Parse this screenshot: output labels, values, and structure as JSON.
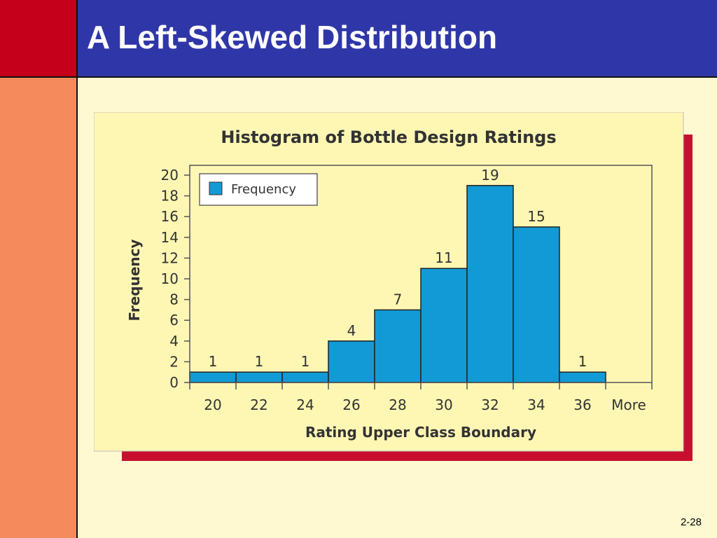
{
  "slide": {
    "title": "A Left-Skewed Distribution",
    "page_number": "2-28"
  },
  "colors": {
    "left_bar_top": "#c4001a",
    "left_bar_bottom": "#f58a5c",
    "title_bar": "#2f37a8",
    "slide_background": "#fff9d2",
    "figure_panel": "#fef7b4",
    "figure_shadow": "#c8102e",
    "bar_fill": "#129ad6"
  },
  "chart_data": {
    "type": "bar",
    "title": "Histogram of Bottle Design Ratings",
    "xlabel": "Rating Upper Class Boundary",
    "ylabel": "Frequency",
    "categories": [
      "20",
      "22",
      "24",
      "26",
      "28",
      "30",
      "32",
      "34",
      "36",
      "More"
    ],
    "series": [
      {
        "name": "Frequency",
        "values": [
          1,
          1,
          1,
          4,
          7,
          11,
          19,
          15,
          1,
          0
        ]
      }
    ],
    "data_labels": [
      "1",
      "1",
      "1",
      "4",
      "7",
      "11",
      "19",
      "15",
      "1",
      ""
    ],
    "ylim": [
      0,
      20
    ],
    "yticks": [
      0,
      2,
      4,
      6,
      8,
      10,
      12,
      14,
      16,
      18,
      20
    ],
    "legend": {
      "position": "top-left",
      "entries": [
        "Frequency"
      ]
    },
    "grid": false,
    "bar_gap": "none"
  }
}
